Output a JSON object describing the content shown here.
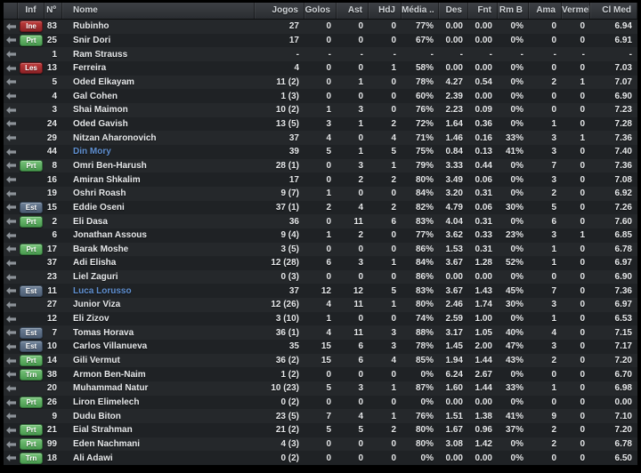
{
  "colors": {
    "frame": "#000000",
    "header_bg_top": "#3d4045",
    "header_bg_bottom": "#2a2d31",
    "header_text": "#cfd3d7",
    "row_odd": "#25282b",
    "row_even": "#1f2225",
    "row_text": "#e6e8ea",
    "link_text": "#5f8fd0",
    "badge_red": "#a62e32",
    "badge_green": "#5aa95f",
    "badge_slate": "#5b6e85"
  },
  "badge_styles": {
    "Ine": "red",
    "Les": "red",
    "Prt": "green",
    "Trn": "green",
    "Est": "slate"
  },
  "table": {
    "columns": [
      {
        "key": "inf",
        "label": "Inf",
        "align": "ac"
      },
      {
        "key": "num",
        "label": "Nº",
        "align": "ar"
      },
      {
        "key": "nome",
        "label": "Nome",
        "align": "al"
      },
      {
        "key": "jogos",
        "label": "Jogos",
        "align": "ar"
      },
      {
        "key": "golos",
        "label": "Golos",
        "align": "ar"
      },
      {
        "key": "ast",
        "label": "Ast",
        "align": "ar"
      },
      {
        "key": "hdj",
        "label": "HdJ",
        "align": "ar"
      },
      {
        "key": "media",
        "label": "Média ..",
        "align": "ar"
      },
      {
        "key": "des",
        "label": "Des",
        "align": "ar"
      },
      {
        "key": "fnt",
        "label": "Fnt",
        "align": "ar"
      },
      {
        "key": "rmb",
        "label": "Rm B",
        "align": "ar"
      },
      {
        "key": "ama",
        "label": "Ama",
        "align": "ar"
      },
      {
        "key": "vermel",
        "label": "Vermel..",
        "align": "ar"
      },
      {
        "key": "clmed",
        "label": "Cl Med",
        "align": "ar"
      }
    ],
    "rows": [
      {
        "inf": "Ine",
        "num": "83",
        "nome": "Rubinho",
        "link": false,
        "jogos": "27",
        "golos": "0",
        "ast": "0",
        "hdj": "0",
        "media": "77%",
        "des": "0.00",
        "fnt": "0.00",
        "rmb": "0%",
        "ama": "0",
        "vermel": "0",
        "clmed": "6.94"
      },
      {
        "inf": "Prt",
        "num": "25",
        "nome": "Snir Dori",
        "link": false,
        "jogos": "17",
        "golos": "0",
        "ast": "0",
        "hdj": "0",
        "media": "67%",
        "des": "0.00",
        "fnt": "0.00",
        "rmb": "0%",
        "ama": "0",
        "vermel": "0",
        "clmed": "6.91"
      },
      {
        "inf": "",
        "num": "1",
        "nome": "Ram Strauss",
        "link": false,
        "jogos": "-",
        "golos": "-",
        "ast": "-",
        "hdj": "-",
        "media": "-",
        "des": "-",
        "fnt": "-",
        "rmb": "-",
        "ama": "-",
        "vermel": "-",
        "clmed": "-"
      },
      {
        "inf": "Les",
        "num": "13",
        "nome": "Ferreira",
        "link": false,
        "jogos": "4",
        "golos": "0",
        "ast": "0",
        "hdj": "1",
        "media": "58%",
        "des": "0.00",
        "fnt": "0.00",
        "rmb": "0%",
        "ama": "0",
        "vermel": "0",
        "clmed": "7.03"
      },
      {
        "inf": "",
        "num": "5",
        "nome": "Oded Elkayam",
        "link": false,
        "jogos": "11 (2)",
        "golos": "0",
        "ast": "1",
        "hdj": "0",
        "media": "78%",
        "des": "4.27",
        "fnt": "0.54",
        "rmb": "0%",
        "ama": "2",
        "vermel": "1",
        "clmed": "7.07"
      },
      {
        "inf": "",
        "num": "4",
        "nome": "Gal Cohen",
        "link": false,
        "jogos": "1 (3)",
        "golos": "0",
        "ast": "0",
        "hdj": "0",
        "media": "60%",
        "des": "2.39",
        "fnt": "0.00",
        "rmb": "0%",
        "ama": "0",
        "vermel": "0",
        "clmed": "6.90"
      },
      {
        "inf": "",
        "num": "3",
        "nome": "Shai Maimon",
        "link": false,
        "jogos": "10 (2)",
        "golos": "1",
        "ast": "3",
        "hdj": "0",
        "media": "76%",
        "des": "2.23",
        "fnt": "0.09",
        "rmb": "0%",
        "ama": "0",
        "vermel": "0",
        "clmed": "7.23"
      },
      {
        "inf": "",
        "num": "24",
        "nome": "Oded Gavish",
        "link": false,
        "jogos": "13 (5)",
        "golos": "3",
        "ast": "1",
        "hdj": "2",
        "media": "72%",
        "des": "1.64",
        "fnt": "0.36",
        "rmb": "0%",
        "ama": "1",
        "vermel": "0",
        "clmed": "7.28"
      },
      {
        "inf": "",
        "num": "29",
        "nome": "Nitzan Aharonovich",
        "link": false,
        "jogos": "37",
        "golos": "4",
        "ast": "0",
        "hdj": "4",
        "media": "71%",
        "des": "1.46",
        "fnt": "0.16",
        "rmb": "33%",
        "ama": "3",
        "vermel": "1",
        "clmed": "7.36"
      },
      {
        "inf": "",
        "num": "44",
        "nome": "Din Mory",
        "link": true,
        "jogos": "39",
        "golos": "5",
        "ast": "1",
        "hdj": "5",
        "media": "75%",
        "des": "0.84",
        "fnt": "0.13",
        "rmb": "41%",
        "ama": "3",
        "vermel": "0",
        "clmed": "7.40"
      },
      {
        "inf": "Prt",
        "num": "8",
        "nome": "Omri Ben-Harush",
        "link": false,
        "jogos": "28 (1)",
        "golos": "0",
        "ast": "3",
        "hdj": "1",
        "media": "79%",
        "des": "3.33",
        "fnt": "0.44",
        "rmb": "0%",
        "ama": "7",
        "vermel": "0",
        "clmed": "7.36"
      },
      {
        "inf": "",
        "num": "16",
        "nome": "Amiran Shkalim",
        "link": false,
        "jogos": "17",
        "golos": "0",
        "ast": "2",
        "hdj": "2",
        "media": "80%",
        "des": "3.49",
        "fnt": "0.06",
        "rmb": "0%",
        "ama": "3",
        "vermel": "0",
        "clmed": "7.08"
      },
      {
        "inf": "",
        "num": "19",
        "nome": "Oshri Roash",
        "link": false,
        "jogos": "9 (7)",
        "golos": "1",
        "ast": "0",
        "hdj": "0",
        "media": "84%",
        "des": "3.20",
        "fnt": "0.31",
        "rmb": "0%",
        "ama": "2",
        "vermel": "0",
        "clmed": "6.92"
      },
      {
        "inf": "Est",
        "num": "15",
        "nome": "Eddie Oseni",
        "link": false,
        "jogos": "37 (1)",
        "golos": "2",
        "ast": "4",
        "hdj": "2",
        "media": "82%",
        "des": "4.79",
        "fnt": "0.06",
        "rmb": "30%",
        "ama": "5",
        "vermel": "0",
        "clmed": "7.26"
      },
      {
        "inf": "Prt",
        "num": "2",
        "nome": "Eli Dasa",
        "link": false,
        "jogos": "36",
        "golos": "0",
        "ast": "11",
        "hdj": "6",
        "media": "83%",
        "des": "4.04",
        "fnt": "0.31",
        "rmb": "0%",
        "ama": "6",
        "vermel": "0",
        "clmed": "7.60"
      },
      {
        "inf": "",
        "num": "6",
        "nome": "Jonathan Assous",
        "link": false,
        "jogos": "9 (4)",
        "golos": "1",
        "ast": "2",
        "hdj": "0",
        "media": "77%",
        "des": "3.62",
        "fnt": "0.33",
        "rmb": "23%",
        "ama": "3",
        "vermel": "1",
        "clmed": "6.85"
      },
      {
        "inf": "Prt",
        "num": "17",
        "nome": "Barak Moshe",
        "link": false,
        "jogos": "3 (5)",
        "golos": "0",
        "ast": "0",
        "hdj": "0",
        "media": "86%",
        "des": "1.53",
        "fnt": "0.31",
        "rmb": "0%",
        "ama": "1",
        "vermel": "0",
        "clmed": "6.78"
      },
      {
        "inf": "",
        "num": "37",
        "nome": "Adi Elisha",
        "link": false,
        "jogos": "12 (28)",
        "golos": "6",
        "ast": "3",
        "hdj": "1",
        "media": "84%",
        "des": "3.67",
        "fnt": "1.28",
        "rmb": "52%",
        "ama": "1",
        "vermel": "0",
        "clmed": "6.97"
      },
      {
        "inf": "",
        "num": "23",
        "nome": "Liel Zaguri",
        "link": false,
        "jogos": "0 (3)",
        "golos": "0",
        "ast": "0",
        "hdj": "0",
        "media": "86%",
        "des": "0.00",
        "fnt": "0.00",
        "rmb": "0%",
        "ama": "0",
        "vermel": "0",
        "clmed": "6.90"
      },
      {
        "inf": "Est",
        "num": "11",
        "nome": "Luca Lorusso",
        "link": true,
        "jogos": "37",
        "golos": "12",
        "ast": "12",
        "hdj": "5",
        "media": "83%",
        "des": "3.67",
        "fnt": "1.43",
        "rmb": "45%",
        "ama": "7",
        "vermel": "0",
        "clmed": "7.36"
      },
      {
        "inf": "",
        "num": "27",
        "nome": "Junior Viza",
        "link": false,
        "jogos": "12 (26)",
        "golos": "4",
        "ast": "11",
        "hdj": "1",
        "media": "80%",
        "des": "2.46",
        "fnt": "1.74",
        "rmb": "30%",
        "ama": "3",
        "vermel": "0",
        "clmed": "6.97"
      },
      {
        "inf": "",
        "num": "12",
        "nome": "Eli Zizov",
        "link": false,
        "jogos": "3 (10)",
        "golos": "1",
        "ast": "0",
        "hdj": "0",
        "media": "74%",
        "des": "2.59",
        "fnt": "1.00",
        "rmb": "0%",
        "ama": "1",
        "vermel": "0",
        "clmed": "6.53"
      },
      {
        "inf": "Est",
        "num": "7",
        "nome": "Tomas Horava",
        "link": false,
        "jogos": "36 (1)",
        "golos": "4",
        "ast": "11",
        "hdj": "3",
        "media": "88%",
        "des": "3.17",
        "fnt": "1.05",
        "rmb": "40%",
        "ama": "4",
        "vermel": "0",
        "clmed": "7.15"
      },
      {
        "inf": "Est",
        "num": "10",
        "nome": "Carlos Villanueva",
        "link": false,
        "jogos": "35",
        "golos": "15",
        "ast": "6",
        "hdj": "3",
        "media": "78%",
        "des": "1.45",
        "fnt": "2.00",
        "rmb": "47%",
        "ama": "3",
        "vermel": "0",
        "clmed": "7.17"
      },
      {
        "inf": "Prt",
        "num": "14",
        "nome": "Gili Vermut",
        "link": false,
        "jogos": "36 (2)",
        "golos": "15",
        "ast": "6",
        "hdj": "4",
        "media": "85%",
        "des": "1.94",
        "fnt": "1.44",
        "rmb": "43%",
        "ama": "2",
        "vermel": "0",
        "clmed": "7.20"
      },
      {
        "inf": "Trn",
        "num": "38",
        "nome": "Armon Ben-Naim",
        "link": false,
        "jogos": "1 (2)",
        "golos": "0",
        "ast": "0",
        "hdj": "0",
        "media": "0%",
        "des": "6.24",
        "fnt": "2.67",
        "rmb": "0%",
        "ama": "0",
        "vermel": "0",
        "clmed": "6.70"
      },
      {
        "inf": "",
        "num": "20",
        "nome": "Muhammad Natur",
        "link": false,
        "jogos": "10 (23)",
        "golos": "5",
        "ast": "3",
        "hdj": "1",
        "media": "87%",
        "des": "1.60",
        "fnt": "1.44",
        "rmb": "33%",
        "ama": "1",
        "vermel": "0",
        "clmed": "6.98"
      },
      {
        "inf": "Prt",
        "num": "26",
        "nome": "Liron Elimelech",
        "link": false,
        "jogos": "0 (2)",
        "golos": "0",
        "ast": "0",
        "hdj": "0",
        "media": "0%",
        "des": "0.00",
        "fnt": "0.00",
        "rmb": "0%",
        "ama": "0",
        "vermel": "0",
        "clmed": "0.00"
      },
      {
        "inf": "",
        "num": "9",
        "nome": "Dudu Biton",
        "link": false,
        "jogos": "23 (5)",
        "golos": "7",
        "ast": "4",
        "hdj": "1",
        "media": "76%",
        "des": "1.51",
        "fnt": "1.38",
        "rmb": "41%",
        "ama": "9",
        "vermel": "0",
        "clmed": "7.10"
      },
      {
        "inf": "Prt",
        "num": "21",
        "nome": "Eial Strahman",
        "link": false,
        "jogos": "21 (2)",
        "golos": "5",
        "ast": "5",
        "hdj": "2",
        "media": "80%",
        "des": "1.67",
        "fnt": "0.96",
        "rmb": "37%",
        "ama": "2",
        "vermel": "0",
        "clmed": "7.20"
      },
      {
        "inf": "Prt",
        "num": "99",
        "nome": "Eden Nachmani",
        "link": false,
        "jogos": "4 (3)",
        "golos": "0",
        "ast": "0",
        "hdj": "0",
        "media": "80%",
        "des": "3.08",
        "fnt": "1.42",
        "rmb": "0%",
        "ama": "2",
        "vermel": "0",
        "clmed": "6.78"
      },
      {
        "inf": "Trn",
        "num": "18",
        "nome": "Ali Adawi",
        "link": false,
        "jogos": "0 (2)",
        "golos": "0",
        "ast": "0",
        "hdj": "0",
        "media": "0%",
        "des": "0.00",
        "fnt": "0.00",
        "rmb": "0%",
        "ama": "0",
        "vermel": "0",
        "clmed": "6.50"
      }
    ]
  }
}
